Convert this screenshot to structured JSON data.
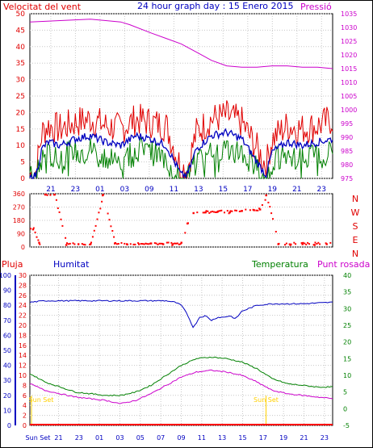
{
  "title": "24 hour graph day : 15 Enero 2015",
  "colors": {
    "wind_speed": "#e00000",
    "wind_avg": "#0000c0",
    "wind_min": "#008000",
    "pressure": "#cc00cc",
    "direction": "#ff0000",
    "humidity": "#0000c0",
    "temperature": "#008000",
    "dewpoint": "#cc00cc",
    "rain": "#ff0000",
    "sunset_marker": "#ffd000",
    "grid": "#c8c8c8"
  },
  "chart_data": [
    {
      "type": "line",
      "panel": "wind_pressure",
      "title": "24 hour graph day : 15 Enero 2015",
      "left_axis_label": "Velocitat del vent",
      "right_axis_label": "Pressió",
      "ylim_left": [
        0,
        50
      ],
      "ylim_right": [
        975,
        1035
      ],
      "left_ticks": [
        "0",
        "5",
        "10",
        "15",
        "20",
        "25",
        "30",
        "35",
        "40",
        "45",
        "50"
      ],
      "right_ticks": [
        "975",
        "980",
        "985",
        "990",
        "995",
        "1000",
        "1005",
        "1010",
        "1015",
        "1020",
        "1025",
        "1030",
        "1035"
      ],
      "x_ticks": [
        "21",
        "23",
        "01",
        "03",
        "09",
        "11",
        "13",
        "15",
        "17",
        "19",
        "21",
        "23"
      ],
      "grid": true,
      "series": [
        {
          "key": "pressure",
          "axis": "right",
          "x": [
            0,
            0.1,
            0.2,
            0.3,
            0.33,
            0.4,
            0.45,
            0.5,
            0.55,
            0.6,
            0.65,
            0.7,
            0.75,
            0.8,
            0.85,
            0.9,
            0.95,
            1.0
          ],
          "values": [
            1032,
            1032.5,
            1033,
            1032,
            1031,
            1028,
            1026,
            1024,
            1021,
            1018,
            1016,
            1015.5,
            1015.5,
            1016,
            1016,
            1015.5,
            1015.5,
            1015
          ]
        },
        {
          "key": "wind_speed",
          "axis": "left",
          "x": [
            0,
            0.02,
            0.04,
            0.06,
            0.1,
            0.15,
            0.2,
            0.25,
            0.3,
            0.35,
            0.4,
            0.45,
            0.5,
            0.52,
            0.55,
            0.6,
            0.65,
            0.7,
            0.75,
            0.78,
            0.8,
            0.85,
            0.9,
            0.95,
            1.0
          ],
          "values": [
            1,
            2,
            14,
            16,
            15,
            17,
            18,
            16,
            15,
            18,
            17,
            16,
            3,
            3,
            14,
            18,
            19,
            17,
            9,
            4,
            12,
            16,
            15,
            16,
            18
          ]
        },
        {
          "key": "wind_avg",
          "axis": "left",
          "x": [
            0,
            0.02,
            0.04,
            0.06,
            0.1,
            0.15,
            0.2,
            0.25,
            0.3,
            0.35,
            0.4,
            0.45,
            0.5,
            0.52,
            0.55,
            0.6,
            0.65,
            0.7,
            0.75,
            0.78,
            0.8,
            0.85,
            0.9,
            0.95,
            1.0
          ],
          "values": [
            0,
            1,
            9,
            11,
            10,
            12,
            13,
            11,
            10,
            13,
            12,
            10,
            1,
            1,
            9,
            13,
            14,
            12,
            5,
            1,
            8,
            11,
            10,
            11,
            12
          ]
        },
        {
          "key": "wind_min",
          "axis": "left",
          "x": [
            0,
            0.02,
            0.04,
            0.06,
            0.1,
            0.15,
            0.2,
            0.25,
            0.3,
            0.35,
            0.4,
            0.45,
            0.5,
            0.52,
            0.55,
            0.6,
            0.65,
            0.7,
            0.75,
            0.78,
            0.8,
            0.85,
            0.9,
            0.95,
            1.0
          ],
          "values": [
            0,
            0,
            6,
            7,
            7,
            8,
            9,
            7,
            6,
            9,
            8,
            6,
            0,
            0,
            5,
            9,
            9,
            8,
            3,
            0,
            5,
            7,
            6,
            7,
            8
          ]
        }
      ]
    },
    {
      "type": "scatter",
      "panel": "wind_direction",
      "ylim": [
        0,
        360
      ],
      "left_ticks": [
        "0",
        "90",
        "180",
        "270",
        "360"
      ],
      "right_labels": [
        "N",
        "W",
        "S",
        "E",
        "N"
      ],
      "series": [
        {
          "key": "direction",
          "x": [
            0.01,
            0.03,
            0.05,
            0.08,
            0.12,
            0.16,
            0.2,
            0.24,
            0.28,
            0.32,
            0.36,
            0.4,
            0.44,
            0.47,
            0.5,
            0.52,
            0.54,
            0.58,
            0.62,
            0.66,
            0.7,
            0.74,
            0.76,
            0.78,
            0.82,
            0.86,
            0.9,
            0.94,
            0.98
          ],
          "values": [
            120,
            30,
            355,
            355,
            15,
            20,
            20,
            350,
            25,
            20,
            20,
            25,
            20,
            15,
            30,
            160,
            230,
            235,
            240,
            235,
            245,
            250,
            255,
            350,
            20,
            15,
            20,
            15,
            20
          ]
        }
      ]
    },
    {
      "type": "line",
      "panel": "temp_humidity",
      "labels": {
        "rain": "Pluja",
        "humidity": "Humitat",
        "temperature": "Temperatura",
        "dewpoint": "Punt rosada"
      },
      "ylim_humidity": [
        0,
        100
      ],
      "ylim_rain": [
        0,
        30
      ],
      "ylim_temp": [
        -5,
        40
      ],
      "humidity_ticks": [
        "0",
        "10",
        "20",
        "30",
        "40",
        "50",
        "60",
        "70",
        "80",
        "90",
        "100"
      ],
      "rain_ticks": [
        "0",
        "2",
        "4",
        "6",
        "8",
        "10",
        "12",
        "14",
        "16",
        "18",
        "20",
        "22",
        "24",
        "26",
        "28",
        "30"
      ],
      "temp_ticks": [
        "-5",
        "0",
        "5",
        "10",
        "15",
        "20",
        "25",
        "30",
        "35",
        "40"
      ],
      "x_ticks": [
        "Sun Set",
        "21",
        "23",
        "01",
        "03",
        "05",
        "07",
        "09",
        "11",
        "13",
        "15",
        "17",
        "19",
        "21",
        "23"
      ],
      "sunset_label": "Sun Set",
      "sunset_x": [
        0.0,
        0.78
      ],
      "series": [
        {
          "key": "humidity",
          "axis": "humidity",
          "x": [
            0,
            0.05,
            0.1,
            0.2,
            0.3,
            0.4,
            0.45,
            0.48,
            0.5,
            0.52,
            0.54,
            0.56,
            0.58,
            0.6,
            0.62,
            0.64,
            0.66,
            0.68,
            0.7,
            0.75,
            0.8,
            0.9,
            1.0
          ],
          "values": [
            82,
            83,
            83,
            83,
            83,
            83,
            83,
            82,
            80,
            74,
            65,
            72,
            73,
            70,
            72,
            72,
            73,
            71,
            76,
            80,
            81,
            81,
            82
          ]
        },
        {
          "key": "temperature",
          "axis": "temp",
          "x": [
            0,
            0.05,
            0.1,
            0.15,
            0.2,
            0.25,
            0.3,
            0.35,
            0.4,
            0.45,
            0.5,
            0.55,
            0.6,
            0.65,
            0.7,
            0.75,
            0.8,
            0.85,
            0.9,
            0.95,
            1.0
          ],
          "values": [
            10.5,
            8,
            6.5,
            5,
            4.5,
            4,
            4,
            5,
            7,
            10,
            13,
            15,
            15.5,
            15,
            14,
            12,
            9,
            7.5,
            7,
            6.5,
            6.5
          ]
        },
        {
          "key": "dewpoint",
          "axis": "temp",
          "x": [
            0,
            0.05,
            0.1,
            0.15,
            0.2,
            0.25,
            0.3,
            0.35,
            0.4,
            0.45,
            0.5,
            0.55,
            0.6,
            0.65,
            0.7,
            0.75,
            0.8,
            0.85,
            0.9,
            0.95,
            1.0
          ],
          "values": [
            7.5,
            5.5,
            4.5,
            3.5,
            3,
            2.5,
            1.5,
            2.5,
            4.5,
            7,
            9.5,
            11,
            11.5,
            11,
            10,
            8,
            5.5,
            4.5,
            4,
            3.5,
            3
          ]
        },
        {
          "key": "rain",
          "axis": "rain",
          "x": [
            0,
            1
          ],
          "values": [
            0,
            0
          ]
        }
      ]
    }
  ]
}
